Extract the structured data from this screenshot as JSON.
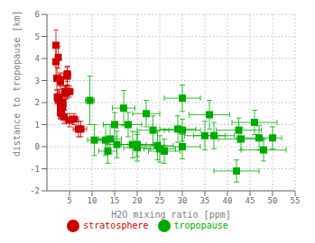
{
  "chart_data": {
    "type": "scatter",
    "xlabel": "H2O mixing ratio [ppm]",
    "ylabel": "distance to tropopause [km]",
    "xlim": [
      0,
      55
    ],
    "xticks": [
      5,
      10,
      15,
      20,
      25,
      30,
      35,
      40,
      45,
      50,
      55
    ],
    "ylim": [
      -2,
      6
    ],
    "yticks": [
      -2,
      -1,
      0,
      1,
      2,
      3,
      4,
      5,
      6
    ],
    "grid": true,
    "legend": "bottom",
    "series": [
      {
        "name": "stratosphere",
        "color": "#cc0000",
        "marker": "square",
        "x": [
          2.0,
          2.0,
          2.5,
          2.2,
          2.3,
          2.5,
          2.8,
          2.5,
          3.0,
          3.0,
          3.0,
          3.0,
          3.0,
          3.0,
          3.0,
          3.2,
          3.5,
          3.5,
          3.5,
          3.8,
          4.0,
          4.2,
          4.2,
          4.5,
          4.5,
          4.5,
          5.0,
          5.0,
          6.0,
          7.0,
          7.5
        ],
        "values": [
          4.6,
          3.85,
          4.05,
          3.1,
          2.25,
          2.2,
          2.25,
          2.15,
          2.95,
          3.05,
          2.0,
          1.95,
          1.6,
          1.55,
          1.65,
          1.5,
          1.8,
          1.95,
          2.0,
          1.35,
          2.5,
          2.5,
          2.45,
          2.5,
          3.3,
          3.2,
          2.5,
          1.2,
          1.25,
          0.8,
          0.8
        ],
        "xerr": [
          0.5,
          0.4,
          0.5,
          0.35,
          0.3,
          0.35,
          0.4,
          0.5,
          0.6,
          0.5,
          0.5,
          0.55,
          0.5,
          0.5,
          0.5,
          0.5,
          0.5,
          0.6,
          0.6,
          0.5,
          0.7,
          0.7,
          0.65,
          0.8,
          0.7,
          0.65,
          0.8,
          0.9,
          1.0,
          1.2,
          1.3
        ],
        "yerr": [
          0.7,
          0.8,
          0.5,
          0.5,
          0.3,
          0.25,
          0.25,
          0.2,
          0.35,
          0.3,
          0.25,
          0.2,
          0.3,
          0.3,
          0.25,
          0.2,
          0.25,
          0.25,
          0.3,
          0.3,
          0.25,
          0.25,
          0.3,
          0.3,
          0.35,
          0.4,
          0.25,
          0.3,
          0.25,
          0.35,
          0.35
        ]
      },
      {
        "name": "tropopause",
        "color": "#00aa00",
        "marker": "square",
        "x": [
          9.5,
          10.5,
          13.0,
          13.5,
          14.0,
          15.0,
          15.5,
          17.0,
          18.0,
          19.0,
          20.0,
          20.0,
          22.0,
          23.5,
          24.5,
          25.0,
          26.0,
          29.0,
          30.0,
          30.0,
          30.0,
          35.0,
          36.0,
          37.0,
          42.0,
          42.5,
          43.0,
          46.0,
          47.0,
          48.0,
          50.0
        ],
        "values": [
          2.1,
          0.3,
          0.3,
          -0.2,
          0.35,
          1.0,
          0.1,
          1.75,
          1.0,
          0.1,
          -0.05,
          0.1,
          1.5,
          0.75,
          0.05,
          -0.1,
          -0.2,
          0.8,
          2.2,
          0.75,
          0.0,
          0.5,
          1.45,
          0.5,
          -1.1,
          0.75,
          0.35,
          1.1,
          0.4,
          -0.15,
          0.4
        ],
        "xerr": [
          1.0,
          1.5,
          2.0,
          2.0,
          2.5,
          2.5,
          2.5,
          2.5,
          3.0,
          3.0,
          3.0,
          3.5,
          3.0,
          3.5,
          3.5,
          3.5,
          3.5,
          4.0,
          4.0,
          4.0,
          4.0,
          4.5,
          4.5,
          4.5,
          5.0,
          5.0,
          5.0,
          5.0,
          5.0,
          5.0,
          0.0
        ],
        "yerr": [
          1.1,
          0.7,
          0.7,
          0.55,
          0.65,
          0.55,
          0.6,
          0.8,
          0.55,
          0.6,
          0.6,
          0.55,
          0.6,
          0.65,
          0.65,
          0.6,
          0.55,
          0.6,
          0.6,
          0.5,
          0.55,
          0.65,
          0.65,
          0.6,
          0.5,
          0.55,
          0.5,
          0.55,
          0.55,
          0.5,
          0.5
        ]
      }
    ]
  }
}
